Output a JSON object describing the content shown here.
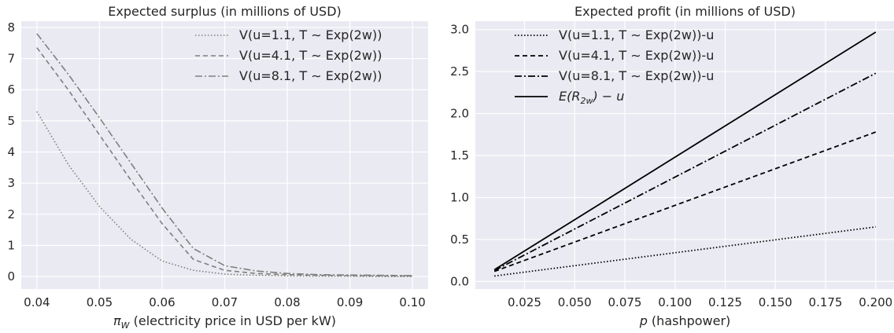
{
  "chart_data": [
    {
      "type": "line",
      "title": "Expected surplus (in millions of USD)",
      "xlabel_symbol": "π",
      "xlabel_sub": "W",
      "xlabel_text": " (electricity price in USD per kW)",
      "xlim": [
        0.0375,
        0.1025
      ],
      "ylim": [
        -0.4,
        8.2
      ],
      "xticks": [
        0.04,
        0.05,
        0.06,
        0.07,
        0.08,
        0.09,
        0.1
      ],
      "xtick_labels": [
        "0.04",
        "0.05",
        "0.06",
        "0.07",
        "0.08",
        "0.09",
        "0.10"
      ],
      "yticks": [
        0,
        1,
        2,
        3,
        4,
        5,
        6,
        7,
        8
      ],
      "ytick_labels": [
        "0",
        "1",
        "2",
        "3",
        "4",
        "5",
        "6",
        "7",
        "8"
      ],
      "legend_position": "top-right",
      "x": [
        0.04,
        0.045,
        0.05,
        0.055,
        0.06,
        0.065,
        0.07,
        0.075,
        0.08,
        0.085,
        0.09,
        0.095,
        0.1
      ],
      "series": [
        {
          "name": "V(u=1.1, T ∼  Exp(2w))",
          "style": "dotted",
          "color": "#7f7f7f",
          "values": [
            5.3,
            3.6,
            2.25,
            1.2,
            0.5,
            0.2,
            0.08,
            0.04,
            0.02,
            0.01,
            0.01,
            0.0,
            0.0
          ]
        },
        {
          "name": "V(u=4.1, T ∼  Exp(2w))",
          "style": "dashed",
          "color": "#7f7f7f",
          "values": [
            7.35,
            6.0,
            4.55,
            3.1,
            1.7,
            0.55,
            0.2,
            0.1,
            0.06,
            0.04,
            0.03,
            0.02,
            0.02
          ]
        },
        {
          "name": "V(u=8.1, T ∼  Exp(2w))",
          "style": "dashdot",
          "color": "#7f7f7f",
          "values": [
            7.8,
            6.5,
            5.1,
            3.65,
            2.2,
            0.9,
            0.35,
            0.18,
            0.1,
            0.06,
            0.05,
            0.04,
            0.03
          ]
        }
      ]
    },
    {
      "type": "line",
      "title": "Expected profit (in millions of USD)",
      "xlabel_symbol": "p",
      "xlabel_text": " (hashpower)",
      "xlim": [
        0.0005,
        0.2095
      ],
      "ylim": [
        -0.09,
        3.1
      ],
      "xticks": [
        0.025,
        0.05,
        0.075,
        0.1,
        0.125,
        0.15,
        0.175,
        0.2
      ],
      "xtick_labels": [
        "0.025",
        "0.050",
        "0.075",
        "0.100",
        "0.125",
        "0.150",
        "0.175",
        "0.200"
      ],
      "yticks": [
        0.0,
        0.5,
        1.0,
        1.5,
        2.0,
        2.5,
        3.0
      ],
      "ytick_labels": [
        "0.0",
        "0.5",
        "1.0",
        "1.5",
        "2.0",
        "2.5",
        "3.0"
      ],
      "legend_position": "top-left",
      "x": [
        0.01,
        0.2
      ],
      "series": [
        {
          "name": "V(u=1.1, T ∼  Exp(2w))-u",
          "style": "dotted",
          "color": "#000000",
          "values": [
            0.065,
            0.65
          ]
        },
        {
          "name": "V(u=4.1, T ∼  Exp(2w))-u",
          "style": "dashed",
          "color": "#000000",
          "values": [
            0.12,
            1.78
          ]
        },
        {
          "name": "V(u=8.1, T ∼  Exp(2w))-u",
          "style": "dashdot",
          "color": "#000000",
          "values": [
            0.13,
            2.48
          ]
        },
        {
          "name_math": "E(R",
          "name_sub": "2w",
          "name_rest": ") − u",
          "style": "solid",
          "color": "#000000",
          "values": [
            0.14,
            2.97
          ]
        }
      ]
    }
  ]
}
